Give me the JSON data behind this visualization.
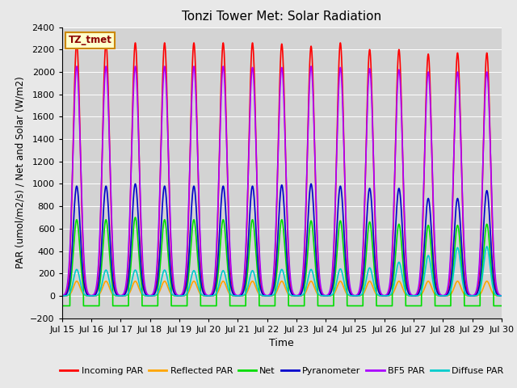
{
  "title": "Tonzi Tower Met: Solar Radiation",
  "ylabel": "PAR (umol/m2/s) / Net and Solar (W/m2)",
  "xlabel": "Time",
  "ylim": [
    -200,
    2400
  ],
  "background_color": "#e8e8e8",
  "plot_bg_color": "#d3d3d3",
  "annotation_text": "TZ_tmet",
  "annotation_bg": "#ffffcc",
  "annotation_border": "#cc8800",
  "series": {
    "incoming_par": {
      "label": "Incoming PAR",
      "color": "#ff0000",
      "lw": 1.2
    },
    "reflected_par": {
      "label": "Reflected PAR",
      "color": "#ffa500",
      "lw": 1.2
    },
    "net": {
      "label": "Net",
      "color": "#00dd00",
      "lw": 1.2
    },
    "pyranometer": {
      "label": "Pyranometer",
      "color": "#0000cc",
      "lw": 1.2
    },
    "bf5_par": {
      "label": "BF5 PAR",
      "color": "#aa00ff",
      "lw": 1.2
    },
    "diffuse_par": {
      "label": "Diffuse PAR",
      "color": "#00cccc",
      "lw": 1.2
    }
  },
  "x_tick_labels": [
    "Jul 15",
    "Jul 16",
    "Jul 17",
    "Jul 18",
    "Jul 19",
    "Jul 20",
    "Jul 21",
    "Jul 22",
    "Jul 23",
    "Jul 24",
    "Jul 25",
    "Jul 26",
    "Jul 27",
    "Jul 28",
    "Jul 29",
    "Jul 30"
  ],
  "incoming_peaks": [
    2260,
    2260,
    2260,
    2260,
    2260,
    2260,
    2260,
    2250,
    2230,
    2260,
    2200,
    2200,
    2160,
    2170,
    2170
  ],
  "bf5_peaks": [
    2050,
    2050,
    2050,
    2050,
    2050,
    2050,
    2040,
    2040,
    2050,
    2040,
    2030,
    2020,
    2000,
    2000,
    2000
  ],
  "pyrano_peaks": [
    980,
    980,
    1000,
    980,
    980,
    980,
    980,
    990,
    1000,
    980,
    960,
    960,
    870,
    870,
    940
  ],
  "net_peaks": [
    680,
    680,
    700,
    680,
    680,
    680,
    680,
    680,
    670,
    670,
    660,
    640,
    630,
    630,
    640
  ],
  "refl_peaks": [
    130,
    130,
    130,
    130,
    130,
    130,
    130,
    130,
    130,
    130,
    130,
    130,
    130,
    130,
    130
  ],
  "diff_peaks": [
    235,
    230,
    230,
    230,
    225,
    225,
    225,
    235,
    235,
    240,
    250,
    300,
    360,
    430,
    440
  ],
  "net_night": -90,
  "n_days": 15,
  "ppd": 288
}
